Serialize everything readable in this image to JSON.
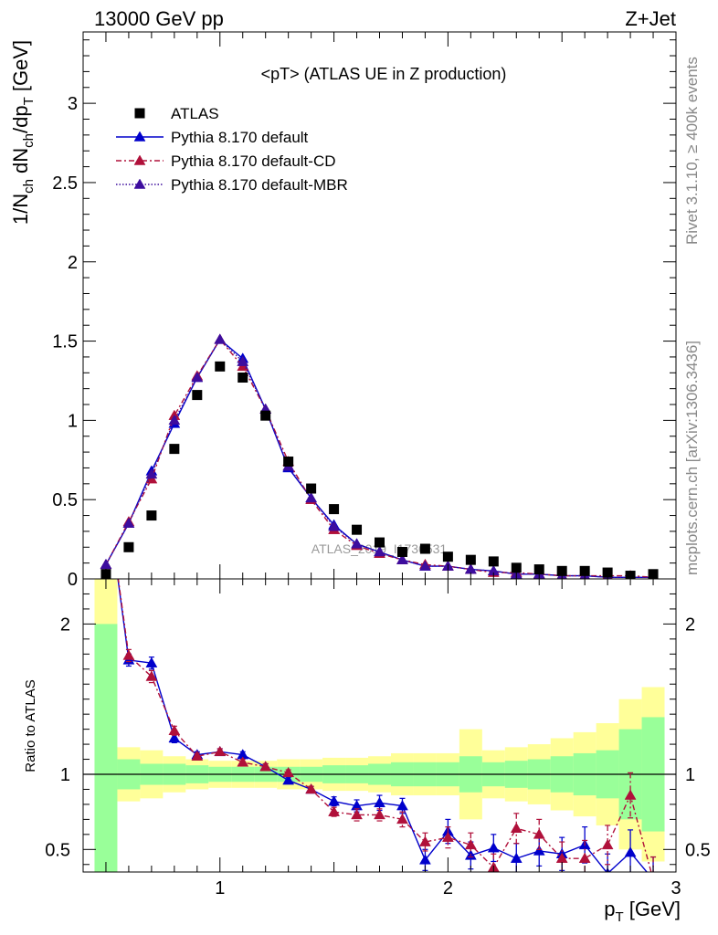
{
  "header": {
    "left": "13000 GeV pp",
    "right": "Z+Jet"
  },
  "side_labels": {
    "rivet": "Rivet 3.1.10, ≥ 400k events",
    "mcplots": "mcplots.cern.ch [arXiv:1306.3436]"
  },
  "watermark": "ATLAS_2019_I1736531",
  "chart_data": [
    {
      "type": "scatter",
      "title": "<pT> (ATLAS UE in Z production)",
      "xlabel": "p_T [GeV]",
      "ylabel": "1/N_ch dN_ch/dp_T [GeV]",
      "xlim": [
        0.4,
        3.0
      ],
      "ylim": [
        0,
        3.45
      ],
      "x_ticks": [
        1,
        2,
        3
      ],
      "y_ticks": [
        0,
        0.5,
        1,
        1.5,
        2,
        2.5,
        3
      ],
      "legend_position": "top-left",
      "x": [
        0.5,
        0.6,
        0.7,
        0.8,
        0.9,
        1.0,
        1.1,
        1.2,
        1.3,
        1.4,
        1.5,
        1.6,
        1.7,
        1.8,
        1.9,
        2.0,
        2.1,
        2.2,
        2.3,
        2.4,
        2.5,
        2.6,
        2.7,
        2.8,
        2.9
      ],
      "series": [
        {
          "name": "ATLAS",
          "style": "data",
          "color": "#000000",
          "values": [
            0.03,
            0.2,
            0.4,
            0.82,
            1.16,
            1.34,
            1.27,
            1.03,
            0.74,
            0.57,
            0.44,
            0.31,
            0.23,
            0.17,
            0.19,
            0.14,
            0.12,
            0.11,
            0.07,
            0.06,
            0.05,
            0.05,
            0.04,
            0.02,
            0.03
          ]
        },
        {
          "name": "Pythia 8.170 default",
          "style": "solid",
          "color": "#0000cc",
          "values": [
            0.09,
            0.35,
            0.68,
            0.98,
            1.27,
            1.51,
            1.39,
            1.07,
            0.7,
            0.51,
            0.34,
            0.22,
            0.17,
            0.12,
            0.08,
            0.08,
            0.06,
            0.05,
            0.03,
            0.03,
            0.02,
            0.02,
            0.01,
            0.01,
            0.01
          ]
        },
        {
          "name": "Pythia 8.170 default-CD",
          "style": "dashdot",
          "color": "#b0103a",
          "values": [
            0.09,
            0.36,
            0.63,
            1.03,
            1.28,
            1.51,
            1.34,
            1.07,
            0.74,
            0.5,
            0.31,
            0.21,
            0.16,
            0.12,
            0.09,
            0.08,
            0.06,
            0.04,
            0.04,
            0.03,
            0.02,
            0.02,
            0.02,
            0.02,
            0.01
          ]
        },
        {
          "name": "Pythia 8.170 default-MBR",
          "style": "dotted",
          "color": "#3d0d9e",
          "values": [
            0.09,
            0.35,
            0.66,
            1.0,
            1.27,
            1.51,
            1.37,
            1.07,
            0.71,
            0.51,
            0.33,
            0.22,
            0.17,
            0.12,
            0.08,
            0.08,
            0.06,
            0.05,
            0.03,
            0.03,
            0.02,
            0.02,
            0.01,
            0.01,
            0.01
          ]
        }
      ]
    },
    {
      "type": "line",
      "title": "",
      "xlabel": "p_T [GeV]",
      "ylabel": "Ratio to ATLAS",
      "xlim": [
        0.4,
        3.0
      ],
      "ylim": [
        0.35,
        2.3
      ],
      "x_ticks": [
        1,
        2,
        3
      ],
      "y_ticks": [
        0.5,
        1,
        2
      ],
      "x": [
        0.5,
        0.6,
        0.7,
        0.8,
        0.9,
        1.0,
        1.1,
        1.2,
        1.3,
        1.4,
        1.5,
        1.6,
        1.7,
        1.8,
        1.9,
        2.0,
        2.1,
        2.2,
        2.3,
        2.4,
        2.5,
        2.6,
        2.7,
        2.8,
        2.9
      ],
      "band_stat": {
        "color": "#99ff99",
        "lo": [
          0.3,
          0.9,
          0.93,
          0.93,
          0.94,
          0.95,
          0.95,
          0.95,
          0.95,
          0.95,
          0.94,
          0.94,
          0.93,
          0.92,
          0.92,
          0.92,
          0.88,
          0.92,
          0.91,
          0.9,
          0.88,
          0.86,
          0.84,
          0.7,
          0.62
        ],
        "hi": [
          2.0,
          1.1,
          1.07,
          1.07,
          1.06,
          1.05,
          1.05,
          1.05,
          1.05,
          1.05,
          1.06,
          1.06,
          1.07,
          1.08,
          1.08,
          1.08,
          1.12,
          1.08,
          1.09,
          1.1,
          1.12,
          1.14,
          1.16,
          1.3,
          1.38
        ]
      },
      "band_total": {
        "color": "#ffff99",
        "lo": [
          0.3,
          0.82,
          0.84,
          0.88,
          0.9,
          0.91,
          0.91,
          0.91,
          0.9,
          0.9,
          0.89,
          0.89,
          0.88,
          0.86,
          0.86,
          0.86,
          0.7,
          0.84,
          0.82,
          0.8,
          0.76,
          0.72,
          0.66,
          0.5,
          0.42
        ],
        "hi": [
          2.3,
          1.18,
          1.16,
          1.12,
          1.1,
          1.09,
          1.09,
          1.09,
          1.1,
          1.1,
          1.11,
          1.11,
          1.12,
          1.14,
          1.14,
          1.14,
          1.3,
          1.16,
          1.18,
          1.2,
          1.24,
          1.28,
          1.34,
          1.5,
          1.58
        ]
      },
      "reference_line": 1,
      "series": [
        {
          "name": "Pythia 8.170 default",
          "style": "solid",
          "color": "#0000cc",
          "values": [
            2.9,
            1.76,
            1.74,
            1.24,
            1.13,
            1.15,
            1.13,
            1.05,
            0.96,
            0.9,
            0.82,
            0.79,
            0.81,
            0.79,
            0.43,
            0.62,
            0.46,
            0.51,
            0.44,
            0.49,
            0.47,
            0.53,
            0.34,
            0.48,
            0.3
          ],
          "errors": [
            0.05,
            0.04,
            0.04,
            0.03,
            0.02,
            0.02,
            0.02,
            0.02,
            0.02,
            0.02,
            0.03,
            0.04,
            0.05,
            0.05,
            0.07,
            0.08,
            0.09,
            0.09,
            0.1,
            0.1,
            0.11,
            0.12,
            0.13,
            0.15,
            0.15
          ]
        },
        {
          "name": "Pythia 8.170 default-CD",
          "style": "dashdot",
          "color": "#b0103a",
          "values": [
            2.9,
            1.79,
            1.65,
            1.29,
            1.12,
            1.15,
            1.08,
            1.05,
            1.01,
            0.9,
            0.75,
            0.73,
            0.73,
            0.7,
            0.55,
            0.58,
            0.53,
            0.38,
            0.64,
            0.6,
            0.44,
            0.44,
            0.53,
            0.86,
            0.3
          ],
          "errors": [
            0.05,
            0.04,
            0.04,
            0.03,
            0.02,
            0.02,
            0.02,
            0.02,
            0.02,
            0.02,
            0.03,
            0.04,
            0.04,
            0.05,
            0.06,
            0.07,
            0.08,
            0.09,
            0.1,
            0.1,
            0.11,
            0.12,
            0.13,
            0.15,
            0.15
          ]
        }
      ]
    }
  ]
}
